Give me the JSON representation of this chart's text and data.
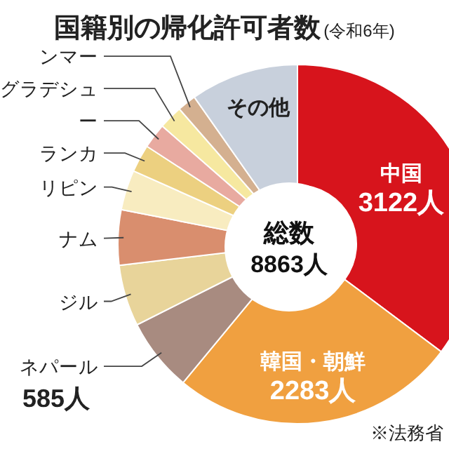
{
  "chart_data": {
    "type": "donut",
    "title": "国籍別の帰化許可者数",
    "subtitle": "(令和6年)",
    "categories": [
      "中国",
      "韓国・朝鮮",
      "ネパール",
      "ジル",
      "ナム",
      "リピン",
      "ランカ",
      "ー",
      "グラデシュ",
      "ンマー",
      "その他"
    ],
    "values": [
      3122,
      2283,
      585,
      490,
      440,
      320,
      220,
      200,
      190,
      150,
      863
    ],
    "value_labels": [
      "3122人",
      "2283人",
      "585人",
      null,
      null,
      null,
      null,
      null,
      null,
      null,
      null
    ],
    "colors": [
      "#d7141c",
      "#f0a040",
      "#a88b80",
      "#e8d49a",
      "#d98e6e",
      "#f8ecc0",
      "#ecd080",
      "#e8aaa0",
      "#f6e8a0",
      "#d4b090",
      "#c8d0dc"
    ],
    "annotations": [
      "総数",
      "8863人",
      "※法務省"
    ]
  }
}
